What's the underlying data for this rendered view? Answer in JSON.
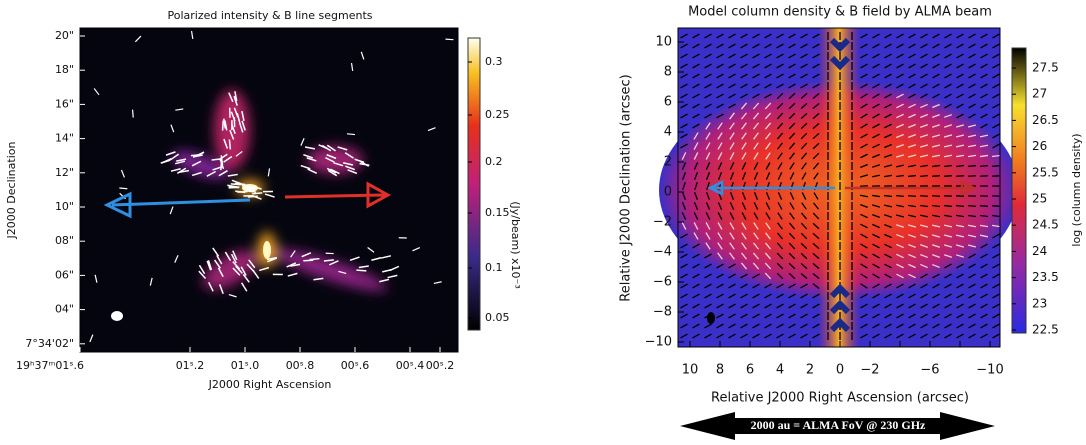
{
  "left_panel": {
    "title": "Polarized intensity & B line segments",
    "y_label": "J2000 Declination",
    "x_label": "J2000 Right Ascension",
    "y_ticks": [
      "20\"",
      "18\"",
      "16\"",
      "14\"",
      "12\"",
      "10\"",
      "08\"",
      "06\"",
      "04\"",
      "7°34'02\""
    ],
    "x_ticks": [
      "19ʰ37ᵐ01ˢ.6",
      "01ˢ.2",
      "01ˢ.0",
      "00ˢ.8",
      "00ˢ.6",
      "00ˢ.4",
      "00ˢ.2"
    ],
    "colorbar": {
      "label": "(Jy/beam) x10⁻³",
      "ticks": [
        "0.3",
        "0.25",
        "0.2",
        "0.15",
        "0.1",
        "0.05"
      ]
    }
  },
  "right_panel": {
    "title": "Model column density & B field by ALMA beam",
    "y_label": "Relative J2000 Declination (arcsec)",
    "x_label": "Relative J2000 Right Ascension (arcsec)",
    "y_ticks": [
      "10",
      "8",
      "6",
      "4",
      "2",
      "0",
      "−2",
      "−4",
      "−6",
      "−8",
      "−10"
    ],
    "x_ticks": [
      "10",
      "8",
      "6",
      "4",
      "2",
      "0",
      "−2",
      "",
      "−6",
      "",
      "−10"
    ],
    "colorbar": {
      "label": "log (column density)",
      "ticks": [
        "27.5",
        "27",
        "26.5",
        "26",
        "25.5",
        "25",
        "24.5",
        "24",
        "23.5",
        "23",
        "22.5"
      ]
    },
    "banner": "2000 au = ALMA FoV @ 230 GHz"
  }
}
